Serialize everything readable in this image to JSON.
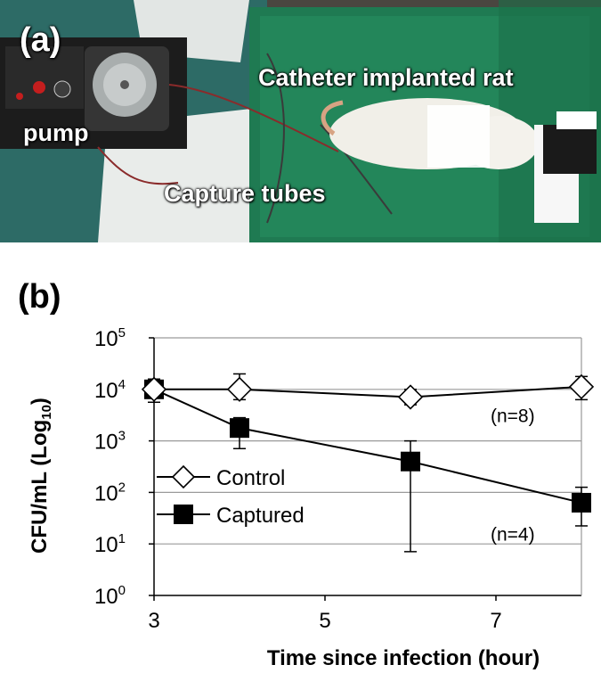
{
  "panel_a": {
    "label": "(a)",
    "annotations": {
      "pump": "pump",
      "rat": "Catheter implanted rat",
      "tubes": "Capture tubes"
    }
  },
  "panel_b": {
    "label": "(b)"
  },
  "colors": {
    "drape": "#1f7a52",
    "grid": "#9a9a9a",
    "series": "#000000"
  },
  "chart_data": {
    "type": "line",
    "xlabel": "Time since infection (hour)",
    "ylabel_parts": [
      "CFU/mL (Log",
      "10",
      ")"
    ],
    "x_ticks": [
      3,
      5,
      7
    ],
    "xlim": [
      3,
      8
    ],
    "y_scale": "log10",
    "ylim": [
      0,
      5
    ],
    "y_ticks": [
      {
        "base": "10",
        "exp": "0"
      },
      {
        "base": "10",
        "exp": "1"
      },
      {
        "base": "10",
        "exp": "2"
      },
      {
        "base": "10",
        "exp": "3"
      },
      {
        "base": "10",
        "exp": "4"
      },
      {
        "base": "10",
        "exp": "5"
      }
    ],
    "grid": "horizontal",
    "legend_position": "left-middle",
    "series": [
      {
        "name": "Control",
        "marker": "open-diamond",
        "x": [
          3,
          4,
          6,
          8
        ],
        "log_y": [
          4.0,
          4.0,
          3.85,
          4.05
        ],
        "err_low": [
          3.85,
          3.8,
          3.7,
          3.8
        ],
        "err_high": [
          4.2,
          4.3,
          4.0,
          4.25
        ],
        "n_label": "(n=8)"
      },
      {
        "name": "Captured",
        "marker": "filled-square",
        "x": [
          3,
          4,
          6,
          8
        ],
        "log_y": [
          4.0,
          3.25,
          2.6,
          1.8
        ],
        "err_low": [
          3.75,
          2.85,
          0.85,
          1.35
        ],
        "err_high": [
          4.05,
          3.45,
          3.0,
          2.1
        ],
        "n_label": "(n=4)"
      }
    ]
  }
}
